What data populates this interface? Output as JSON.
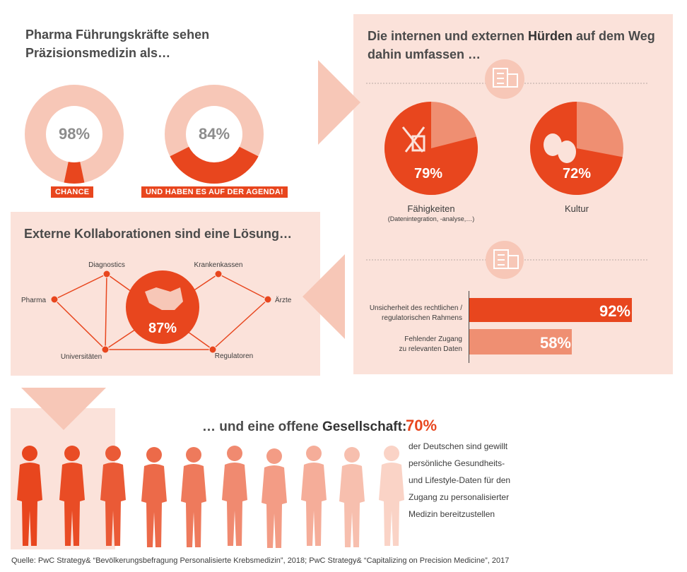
{
  "section1": {
    "heading_line1": "Pharma Führungskräfte sehen",
    "heading_line2": "Präzisionsmedizin als…",
    "donuts": [
      {
        "value_text": "98%",
        "value": 98,
        "tag": "CHANCE"
      },
      {
        "value_text": "84%",
        "value": 84,
        "tag": "UND HABEN ES AUF DER AGENDA!"
      }
    ]
  },
  "section2": {
    "heading_line1_pre": "Die internen und externen ",
    "heading_line1_bold": "Hürden",
    "heading_line1_post": " auf dem Weg",
    "heading_line2": "dahin umfassen …",
    "pies": [
      {
        "value_text": "79%",
        "value": 79,
        "label": "Fähigkeiten",
        "sublabel": "(Datenintegration, -analyse,…)",
        "icon": "tools-icon"
      },
      {
        "value_text": "72%",
        "value": 72,
        "label": "Kultur",
        "sublabel": "",
        "icon": "theater-masks-icon"
      }
    ],
    "bars": [
      {
        "label_line1": "Unsicherheit des rechtlichen /",
        "label_line2": "regulatorischen Rahmens",
        "value_text": "92%",
        "value": 92
      },
      {
        "label_line1": "Fehlender Zugang",
        "label_line2": "zu relevanten Daten",
        "value_text": "58%",
        "value": 58
      }
    ]
  },
  "section3": {
    "heading": "Externe Kollaborationen sind eine Lösung…",
    "center_value": "87%",
    "nodes": [
      "Diagnostics",
      "Krankenkassen",
      "Pharma",
      "Ärzte",
      "Universitäten",
      "Regulatoren"
    ]
  },
  "section4": {
    "heading_pre": "… und eine offene ",
    "heading_bold": "Gesellschaft:",
    "value_text": "70%",
    "desc_lines": [
      "der Deutschen sind gewillt",
      "persönliche Gesundheits-",
      "und Lifestyle-Daten für den",
      "Zugang zu personalisierter",
      "Medizin bereitzustellen"
    ]
  },
  "footer": {
    "source": "Quelle: PwC Strategy& “Bevölkerungsbefragung Personalisierte Krebsmedizin”, 2018; PwC Strategy& “Capitalizing on Precision Medicine”, 2017"
  },
  "colors": {
    "accent": "#e8461e",
    "light": "#fbe2da",
    "mid": "#f7c7b7",
    "salmon": "#ef8f72"
  }
}
